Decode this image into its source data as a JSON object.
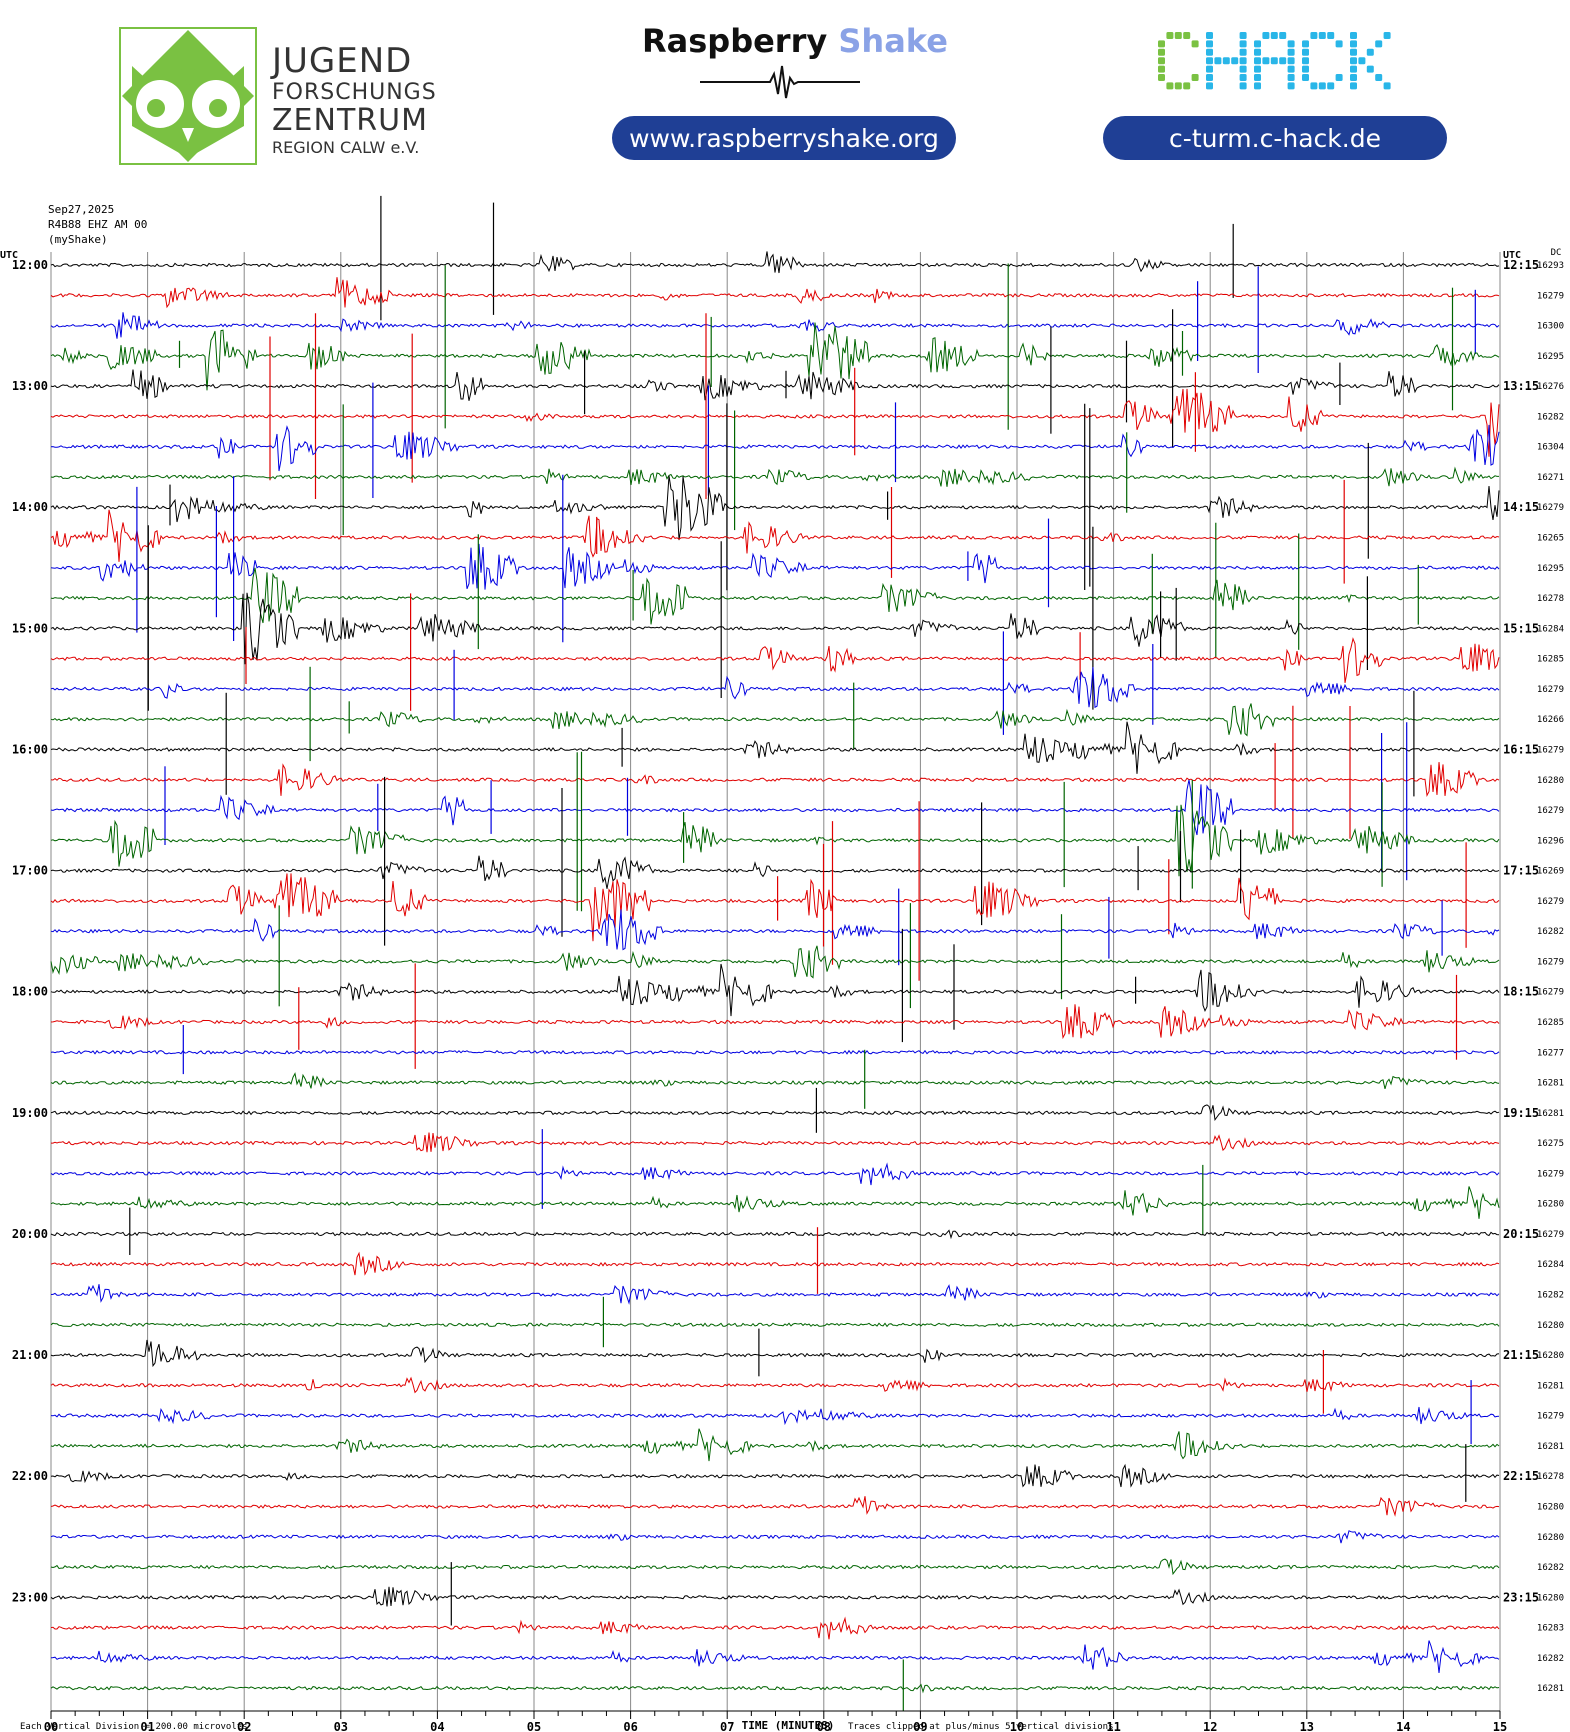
{
  "header": {
    "jfz": {
      "line1": "JUGEND",
      "line2": "FORSCHUNGS",
      "line3": "ZENTRUM",
      "line4": "REGION CALW e.V.",
      "green": "#7ac142"
    },
    "rs_brand_a": "Raspberry",
    "rs_brand_b": "Shake",
    "rs_url": "www.raspberryshake.org",
    "chack_logo": "CHACK",
    "chack_url": "c-turm.c-hack.de",
    "pill_color": "#1f3f95",
    "chack_colors": [
      "#7ac142",
      "#29b6e8"
    ]
  },
  "meta": {
    "date": "Sep27,2025",
    "station": "R4B88 EHZ AM 00",
    "source": "(myShake)"
  },
  "chart_data": {
    "type": "line",
    "title": "",
    "xlabel": "TIME (MINUTES)",
    "ylabel": "",
    "x_ticks": [
      "00",
      "01",
      "02",
      "03",
      "04",
      "05",
      "06",
      "07",
      "08",
      "09",
      "10",
      "11",
      "12",
      "13",
      "14",
      "15"
    ],
    "xlim": [
      0,
      15
    ],
    "left_axis_unit": "UTC",
    "right_axis_unit": "UTC",
    "dc_header": "DC",
    "trace_colors": [
      "#000000",
      "#e00000",
      "#0000e0",
      "#006400"
    ],
    "left_labels": [
      "12:00",
      "13:00",
      "14:00",
      "15:00",
      "16:00",
      "17:00",
      "18:00",
      "19:00",
      "20:00",
      "21:00",
      "22:00",
      "23:00"
    ],
    "right_labels": [
      "12:15",
      "13:15",
      "14:15",
      "15:15",
      "16:15",
      "17:15",
      "18:15",
      "19:15",
      "20:15",
      "21:15",
      "22:15",
      "23:15"
    ],
    "dc_values": [
      16293,
      16279,
      16300,
      16295,
      16276,
      16282,
      16304,
      16271,
      16279,
      16265,
      16295,
      16278,
      16284,
      16285,
      16279,
      16266,
      16279,
      16280,
      16279,
      16296,
      16269,
      16279,
      16282,
      16279,
      16279,
      16285,
      16277,
      16281,
      16281,
      16275,
      16279,
      16280,
      16279,
      16284,
      16282,
      16280,
      16280,
      16281,
      16279,
      16281,
      16278,
      16280,
      16280,
      16282,
      16280,
      16283,
      16282,
      16281
    ],
    "activity": [
      2,
      1,
      2,
      3,
      3,
      3,
      2,
      2,
      3,
      2,
      3,
      3,
      3,
      2,
      2,
      2,
      2,
      2,
      3,
      3,
      3,
      3,
      2,
      2,
      2,
      2,
      1,
      1,
      1,
      1,
      1,
      1,
      1,
      1,
      1,
      1,
      1,
      1,
      1,
      1,
      1,
      1,
      1,
      1,
      1,
      1,
      1,
      1
    ],
    "footer_left": "Each Vertical Division =  200.00 microvolts",
    "footer_right": "Traces clipped at plus/minus 5 vertical divisions"
  }
}
